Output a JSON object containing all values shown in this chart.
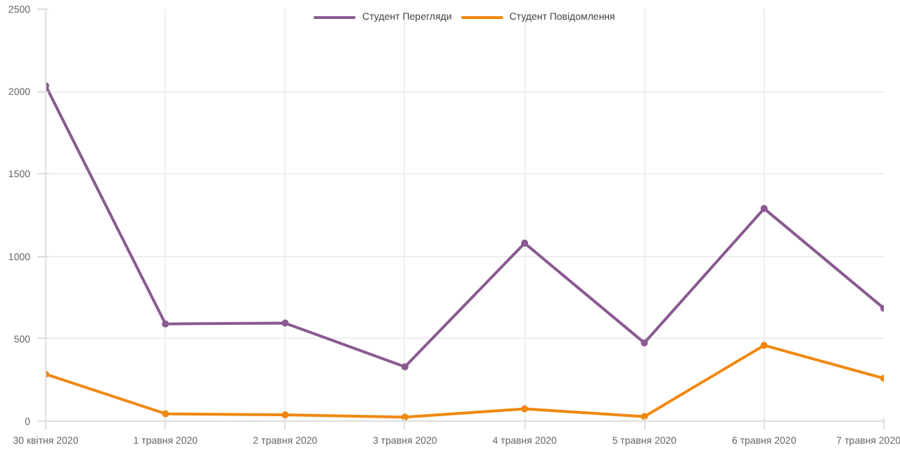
{
  "chart_data": {
    "type": "line",
    "categories": [
      "30 квітня 2020",
      "1 травня 2020",
      "2 травня 2020",
      "3 травня 2020",
      "4 травня 2020",
      "5 травня 2020",
      "6 травня 2020",
      "7 травня 2020"
    ],
    "series": [
      {
        "name": "Студент Перегляди",
        "color": "#8a5a91",
        "values": [
          2035,
          590,
          595,
          330,
          1080,
          475,
          1290,
          685
        ]
      },
      {
        "name": "Студент Повідомлення",
        "color": "#f0880f",
        "values": [
          285,
          45,
          38,
          25,
          75,
          28,
          460,
          260
        ]
      }
    ],
    "ylim": [
      0,
      2500
    ],
    "yticks": [
      0,
      500,
      1000,
      1500,
      2000,
      2500
    ],
    "grid": true,
    "legend": "top",
    "marker": "circle",
    "line_style": "solid"
  }
}
